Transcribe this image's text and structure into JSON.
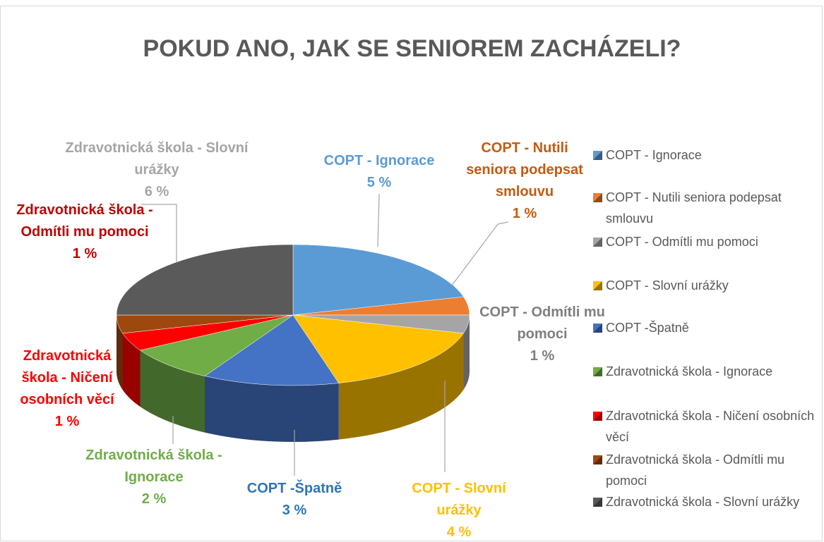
{
  "chart_data": {
    "type": "pie3d",
    "title": "POKUD ANO, JAK SE SENIOREM ZACHÁZELI?",
    "categories": [
      "COPT - Ignorace",
      "COPT - Nutili seniora podepsat smlouvu",
      "COPT - Odmítli mu pomoci",
      "COPT - Slovní urážky",
      "COPT -Špatně",
      "Zdravotnická škola - Ignorace",
      "Zdravotnická škola - Ničení osobních věcí",
      "Zdravotnická škola - Odmítli mu pomoci",
      "Zdravotnická škola - Slovní urážky"
    ],
    "values": [
      5,
      1,
      1,
      4,
      3,
      2,
      1,
      1,
      6
    ],
    "value_labels": [
      "5 %",
      "1 %",
      "1 %",
      "4 %",
      "3 %",
      "2 %",
      "1 %",
      "1 %",
      "6 %"
    ],
    "colors": [
      "#5b9bd5",
      "#ed7d31",
      "#a5a5a5",
      "#ffc000",
      "#4472c4",
      "#70ad47",
      "#ff0000",
      "#9e480e",
      "#5a5a5a"
    ],
    "legend": "right"
  }
}
